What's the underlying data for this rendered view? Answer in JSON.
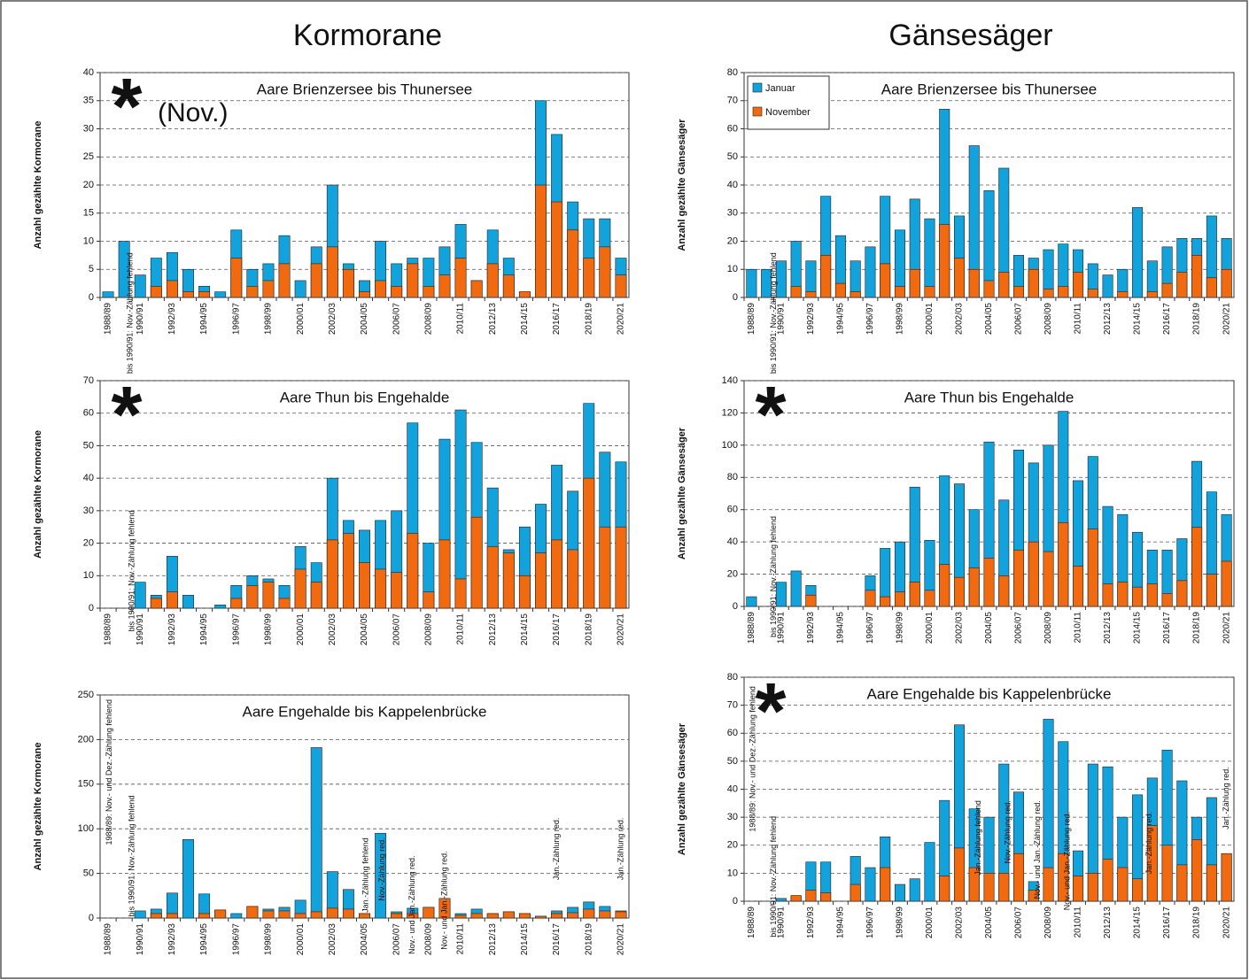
{
  "headings": [
    "Kormorane",
    "Gänsesäger"
  ],
  "chart_data": [
    {
      "type": "bar",
      "title": "Aare Brienzersee bis Thunersee",
      "ylabel": "Anzahl gezählte Kormorane",
      "categories": [
        "1988/89",
        null,
        "1990/91",
        null,
        "1992/93",
        null,
        "1994/95",
        null,
        "1996/97",
        null,
        "1998/99",
        null,
        "2000/01",
        null,
        "2002/03",
        null,
        "2004/05",
        null,
        "2006/07",
        null,
        "2008/09",
        null,
        "2010/11",
        null,
        "2012/13",
        null,
        "2014/15",
        null,
        "2016/17",
        null,
        "2018/19",
        null,
        "2020/21"
      ],
      "series": [
        {
          "color": "#12a3dc",
          "values": [
            1,
            10,
            4,
            7,
            8,
            5,
            2,
            1,
            12,
            5,
            6,
            11,
            3,
            9,
            20,
            6,
            3,
            10,
            6,
            7,
            7,
            9,
            13,
            3,
            12,
            7,
            1,
            35,
            29,
            17,
            14,
            14,
            7
          ]
        },
        {
          "color": "#f26a10",
          "values": [
            0,
            0,
            0,
            2,
            3,
            1,
            1,
            0,
            7,
            2,
            3,
            6,
            0,
            6,
            9,
            5,
            1,
            3,
            2,
            6,
            2,
            4,
            7,
            3,
            6,
            4,
            1,
            20,
            17,
            12,
            7,
            9,
            4
          ]
        }
      ],
      "ylim": [
        0,
        40
      ],
      "yticks": [
        0,
        5,
        10,
        15,
        20,
        25,
        30,
        35,
        40
      ],
      "grid": true,
      "marker": {
        "text": "*",
        "color": "#a8cff0",
        "note": "(Nov.)",
        "note_color": "#3a3af0"
      },
      "annotations": [
        "bis 1990/91: Nov.-Zählung fehlend"
      ]
    },
    {
      "type": "bar",
      "title": "Aare Thun bis Engehalde",
      "ylabel": "Anzahl gezählte Kormorane",
      "categories": [
        "1988/89",
        null,
        "1990/91",
        null,
        "1992/93",
        null,
        "1994/95",
        null,
        "1996/97",
        null,
        "1998/99",
        null,
        "2000/01",
        null,
        "2002/03",
        null,
        "2004/05",
        null,
        "2006/07",
        null,
        "2008/09",
        null,
        "2010/11",
        null,
        "2012/13",
        null,
        "2014/15",
        null,
        "2016/17",
        null,
        "2018/19",
        null,
        "2020/21"
      ],
      "series": [
        {
          "color": "#12a3dc",
          "values": [
            null,
            null,
            8,
            4,
            16,
            4,
            0,
            1,
            7,
            10,
            9,
            7,
            19,
            14,
            40,
            27,
            24,
            27,
            30,
            57,
            20,
            52,
            61,
            51,
            37,
            18,
            25,
            32,
            44,
            36,
            63,
            48,
            45
          ]
        },
        {
          "color": "#f26a10",
          "values": [
            null,
            null,
            null,
            3,
            5,
            0,
            0,
            0,
            3,
            7,
            8,
            3,
            12,
            8,
            21,
            23,
            14,
            12,
            11,
            23,
            5,
            21,
            9,
            28,
            19,
            17,
            10,
            17,
            21,
            18,
            40,
            25,
            25
          ]
        }
      ],
      "ylim": [
        0,
        70
      ],
      "yticks": [
        0,
        10,
        20,
        30,
        40,
        50,
        60,
        70
      ],
      "grid": true,
      "marker": {
        "text": "*",
        "color": "#1530c8"
      },
      "annotations": [
        "bis 1990/91: Nov.-Zählung fehlend"
      ]
    },
    {
      "type": "bar",
      "title": "Aare Engehalde bis Kappelenbrücke",
      "ylabel": "Anzahl gezählte Kormorane",
      "categories": [
        "1988/89",
        null,
        "1990/91",
        null,
        "1992/93",
        null,
        "1994/95",
        null,
        "1996/97",
        null,
        "1998/99",
        null,
        "2000/01",
        null,
        "2002/03",
        null,
        "2004/05",
        null,
        "2006/07",
        null,
        "2008/09",
        null,
        "2010/11",
        null,
        "2012/13",
        null,
        "2014/15",
        null,
        "2016/17",
        null,
        "2018/19",
        null,
        "2020/21"
      ],
      "series": [
        {
          "color": "#12a3dc",
          "values": [
            null,
            null,
            8,
            10,
            28,
            88,
            27,
            9,
            5,
            13,
            10,
            12,
            20,
            191,
            52,
            32,
            5,
            95,
            7,
            11,
            12,
            21,
            5,
            10,
            5,
            7,
            5,
            2,
            8,
            12,
            18,
            13,
            8
          ]
        },
        {
          "color": "#f26a10",
          "values": [
            null,
            null,
            null,
            5,
            5,
            0,
            5,
            9,
            0,
            13,
            8,
            8,
            5,
            7,
            11,
            10,
            5,
            null,
            5,
            5,
            12,
            22,
            3,
            5,
            5,
            7,
            5,
            2,
            5,
            6,
            10,
            8,
            7
          ]
        }
      ],
      "ylim": [
        0,
        250
      ],
      "yticks": [
        0,
        50,
        100,
        150,
        200,
        250
      ],
      "grid": true,
      "annotations": [
        "1988/89: Nov.- und Dez.-Zählung fehlend",
        "bis 1990/91: Nov.-Zählung fehlend",
        "Jan.-Zählung fehlend",
        "Nov.-Zählung red.",
        "Nov.- und Jan.-Zählung red.",
        "Nov.- und Jan.-Zählung red.",
        "Jan.-Zählung red.",
        "Jan.-Zählung red."
      ]
    },
    {
      "type": "bar",
      "title": "Aare Brienzersee bis Thunersee",
      "ylabel": "Anzahl gezählte Gänsesäger",
      "categories": [
        "1988/89",
        null,
        "1990/91",
        null,
        "1992/93",
        null,
        "1994/95",
        null,
        "1996/97",
        null,
        "1998/99",
        null,
        "2000/01",
        null,
        "2002/03",
        null,
        "2004/05",
        null,
        "2006/07",
        null,
        "2008/09",
        null,
        "2010/11",
        null,
        "2012/13",
        null,
        "2014/15",
        null,
        "2016/17",
        null,
        "2018/19",
        null,
        "2020/21"
      ],
      "series": [
        {
          "name": "Januar",
          "color": "#12a3dc",
          "values": [
            10,
            10,
            13,
            20,
            13,
            36,
            22,
            13,
            18,
            36,
            24,
            35,
            28,
            67,
            29,
            54,
            38,
            46,
            15,
            14,
            17,
            19,
            17,
            12,
            8,
            10,
            32,
            13,
            18,
            21,
            21,
            29,
            21
          ]
        },
        {
          "name": "November",
          "color": "#f26a10",
          "values": [
            0,
            0,
            0,
            4,
            2,
            15,
            5,
            2,
            0,
            12,
            4,
            10,
            4,
            26,
            14,
            10,
            6,
            9,
            4,
            10,
            3,
            4,
            9,
            3,
            0,
            2,
            0,
            2,
            5,
            9,
            15,
            7,
            10
          ]
        }
      ],
      "ylim": [
        0,
        80
      ],
      "yticks": [
        0,
        10,
        20,
        30,
        40,
        50,
        60,
        70,
        80
      ],
      "grid": true,
      "legend": "upper left",
      "annotations": [
        "bis 1990/91: Nov.-Zählung fehlend"
      ]
    },
    {
      "type": "bar",
      "title": "Aare Thun bis Engehalde",
      "ylabel": "Anzahl gezählte Gänsesäger",
      "categories": [
        "1988/89",
        null,
        "1990/91",
        null,
        "1992/93",
        null,
        "1994/95",
        null,
        "1996/97",
        null,
        "1998/99",
        null,
        "2000/01",
        null,
        "2002/03",
        null,
        "2004/05",
        null,
        "2006/07",
        null,
        "2008/09",
        null,
        "2010/11",
        null,
        "2012/13",
        null,
        "2014/15",
        null,
        "2016/17",
        null,
        "2018/19",
        null,
        "2020/21"
      ],
      "series": [
        {
          "color": "#12a3dc",
          "values": [
            6,
            null,
            15,
            22,
            13,
            null,
            null,
            null,
            19,
            36,
            40,
            74,
            41,
            81,
            76,
            60,
            102,
            66,
            97,
            89,
            100,
            121,
            78,
            93,
            62,
            57,
            46,
            35,
            35,
            42,
            90,
            71,
            57
          ]
        },
        {
          "color": "#f26a10",
          "values": [
            null,
            null,
            null,
            null,
            7,
            null,
            null,
            null,
            10,
            6,
            9,
            15,
            10,
            26,
            18,
            24,
            30,
            19,
            35,
            40,
            34,
            52,
            25,
            48,
            14,
            15,
            12,
            14,
            8,
            16,
            49,
            20,
            28
          ]
        }
      ],
      "ylim": [
        0,
        140
      ],
      "yticks": [
        0,
        20,
        40,
        60,
        80,
        100,
        120,
        140
      ],
      "grid": true,
      "marker": {
        "text": "*",
        "color": "#1530c8"
      },
      "annotations": [
        "bis 1990/91: Nov.-Zählung fehlend"
      ]
    },
    {
      "type": "bar",
      "title": "Aare Engehalde bis Kappelenbrücke",
      "ylabel": "Anzahl gezählte Gänsesäger",
      "categories": [
        "1988/89",
        null,
        "1990/91",
        null,
        "1992/93",
        null,
        "1994/95",
        null,
        "1996/97",
        null,
        "1998/99",
        null,
        "2000/01",
        null,
        "2002/03",
        null,
        "2004/05",
        null,
        "2006/07",
        null,
        "2008/09",
        null,
        "2010/11",
        null,
        "2012/13",
        null,
        "2014/15",
        null,
        "2016/17",
        null,
        "2018/19",
        null,
        "2020/21"
      ],
      "series": [
        {
          "color": "#12a3dc",
          "values": [
            null,
            null,
            1,
            2,
            14,
            14,
            null,
            16,
            12,
            23,
            6,
            8,
            21,
            36,
            63,
            33,
            30,
            49,
            39,
            7,
            65,
            57,
            18,
            49,
            48,
            30,
            38,
            44,
            54,
            43,
            30,
            37,
            17
          ]
        },
        {
          "color": "#f26a10",
          "values": [
            null,
            null,
            null,
            2,
            4,
            3,
            null,
            6,
            0,
            12,
            0,
            0,
            0,
            9,
            19,
            12,
            10,
            10,
            17,
            4,
            12,
            17,
            9,
            10,
            15,
            12,
            8,
            27,
            20,
            13,
            22,
            13,
            17
          ]
        }
      ],
      "ylim": [
        0,
        80
      ],
      "yticks": [
        0,
        10,
        20,
        30,
        40,
        50,
        60,
        70,
        80
      ],
      "grid": true,
      "marker": {
        "text": "*",
        "color": "#1530c8"
      },
      "annotations": [
        "1988/89: Nov.- und Dez.-Zählung fehlend",
        "bis 1990/91: Nov.-Zählung fehlend",
        "Jan.-Zählung fehlend",
        "Nov.-Zählung red.",
        "Nov.- und Jan.-Zählung red.",
        "Nov.- und Jan.-Zählung red.",
        "Jan.-Zählung red.",
        "Jan.-Zählung red."
      ]
    }
  ]
}
